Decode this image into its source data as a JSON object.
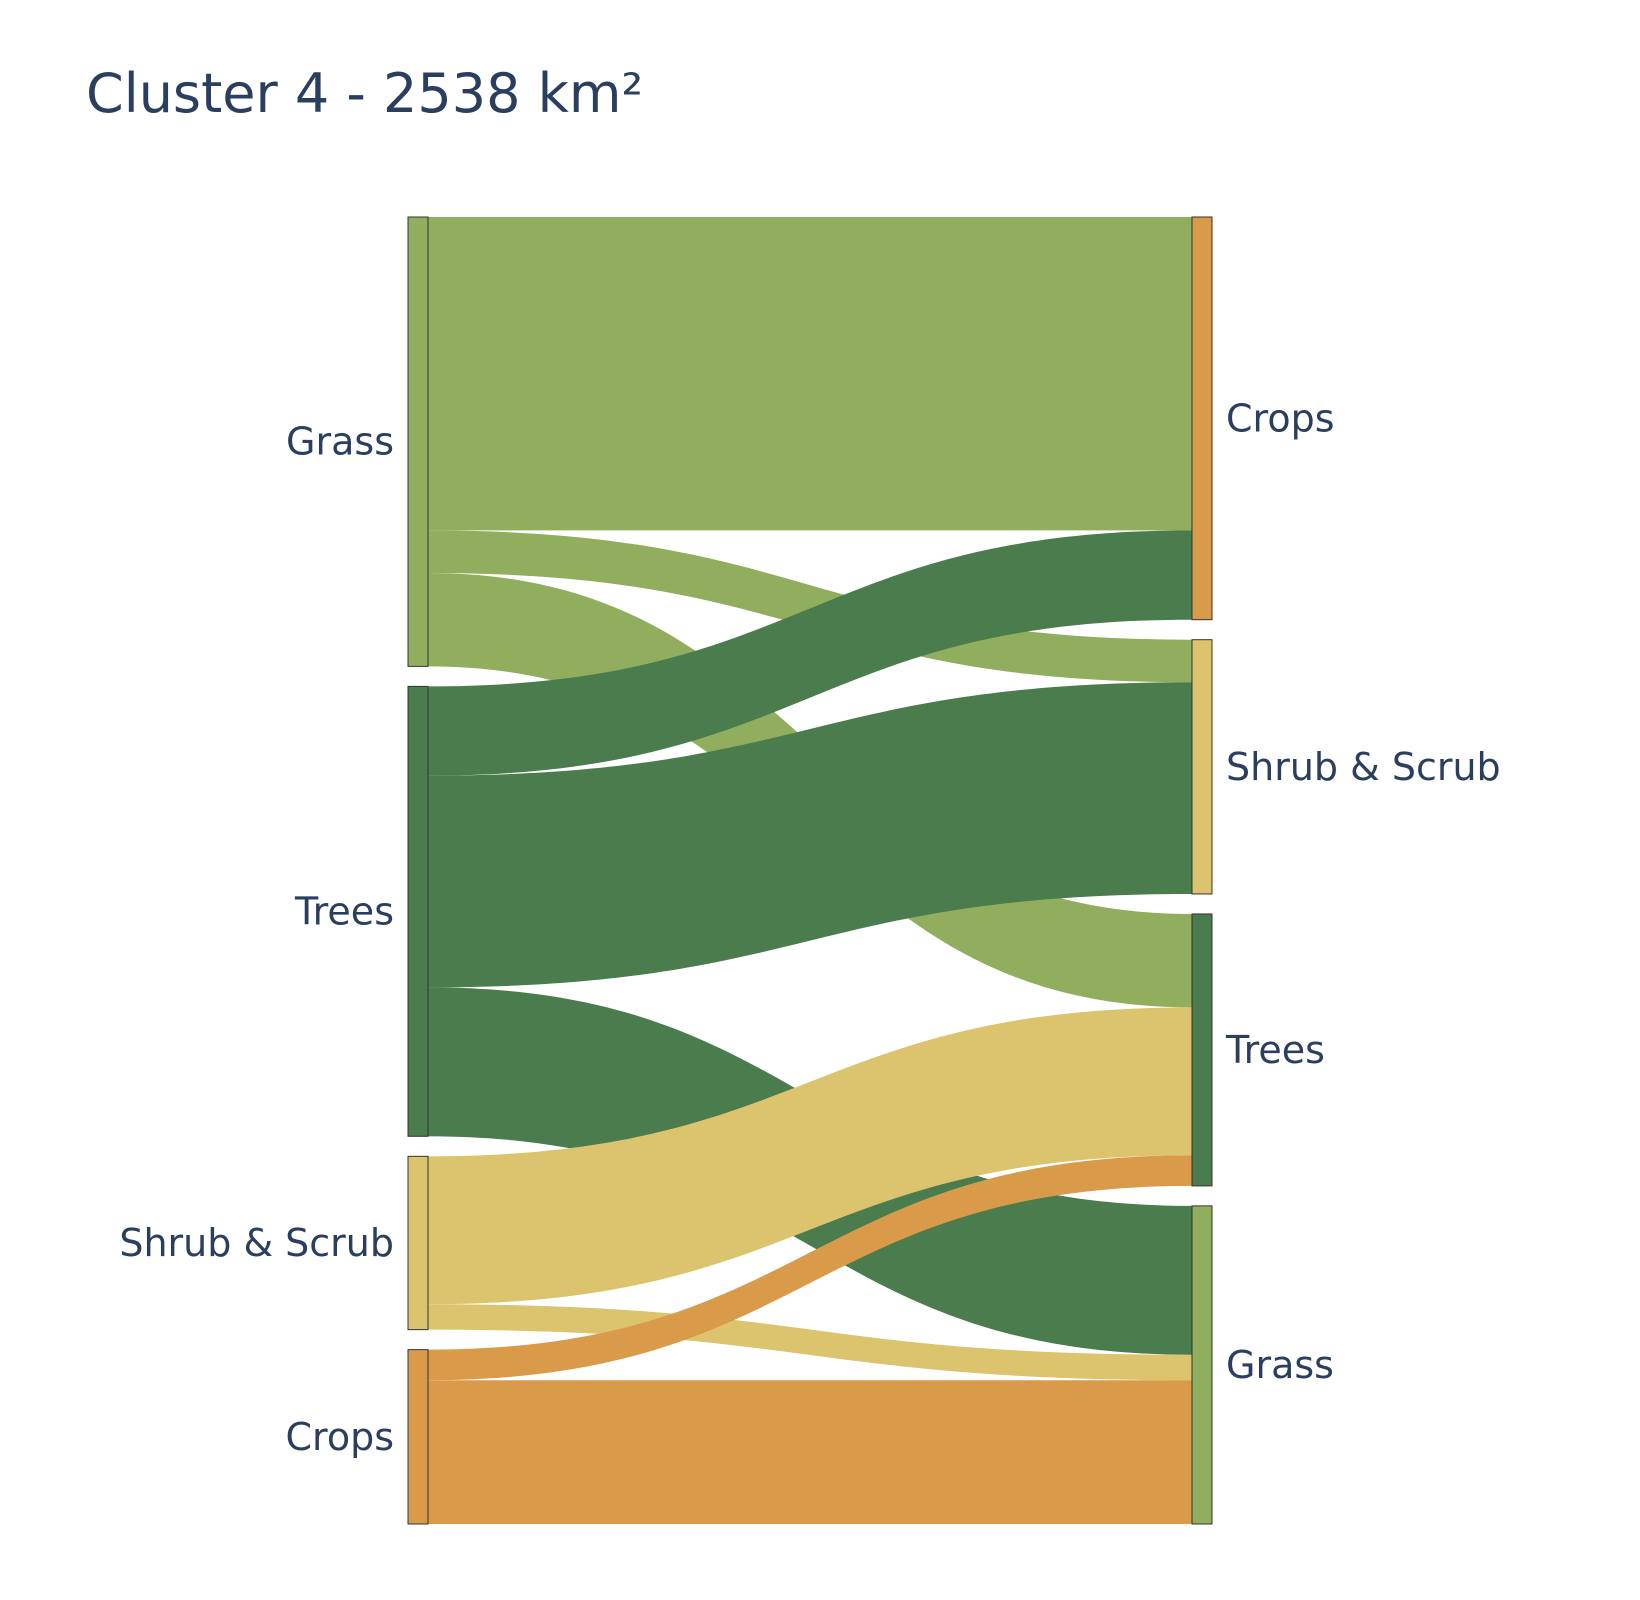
{
  "chart_data": {
    "type": "sankey",
    "title": "Cluster 4 - 2538 km²",
    "colors": {
      "Grass": "#91ae5e",
      "Trees": "#4a7c4e",
      "Shrub & Scrub": "#dbc46d",
      "Crops": "#d99a4a"
    },
    "sources": [
      "Grass",
      "Trees",
      "Shrub & Scrub",
      "Crops"
    ],
    "targets": [
      "Crops",
      "Shrub & Scrub",
      "Trees",
      "Grass"
    ],
    "links": [
      {
        "source": "Grass",
        "target": "Crops",
        "value": 604
      },
      {
        "source": "Grass",
        "target": "Shrub & Scrub",
        "value": 82
      },
      {
        "source": "Grass",
        "target": "Trees",
        "value": 180
      },
      {
        "source": "Trees",
        "target": "Crops",
        "value": 172
      },
      {
        "source": "Trees",
        "target": "Shrub & Scrub",
        "value": 408
      },
      {
        "source": "Trees",
        "target": "Grass",
        "value": 287
      },
      {
        "source": "Shrub & Scrub",
        "target": "Trees",
        "value": 285
      },
      {
        "source": "Shrub & Scrub",
        "target": "Grass",
        "value": 49
      },
      {
        "source": "Crops",
        "target": "Trees",
        "value": 59
      },
      {
        "source": "Crops",
        "target": "Grass",
        "value": 277
      }
    ]
  }
}
